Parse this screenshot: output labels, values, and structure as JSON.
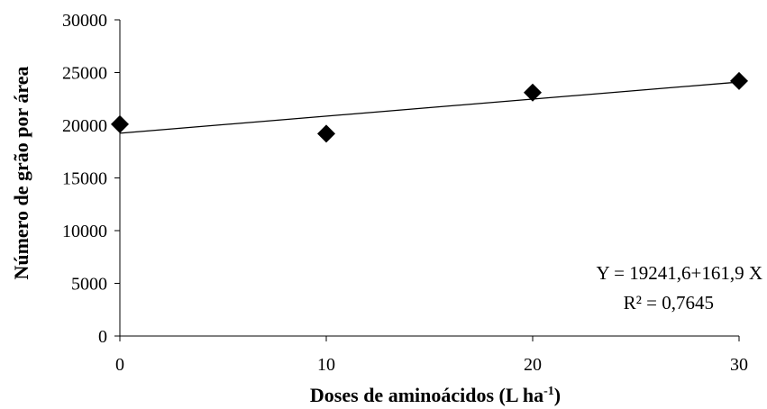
{
  "chart_data": {
    "type": "scatter",
    "x": [
      0,
      10,
      20,
      30
    ],
    "y": [
      20100,
      19200,
      23100,
      24200
    ],
    "xlabel": {
      "text": "Doses de aminoácidos (L ha",
      "superscript": "-1",
      "suffix": ")"
    },
    "ylabel": "Número de grão por área",
    "xlim": [
      0,
      30
    ],
    "ylim": [
      0,
      30000
    ],
    "xticks": [
      0,
      10,
      20,
      30
    ],
    "yticks": [
      0,
      5000,
      10000,
      15000,
      20000,
      25000,
      30000
    ],
    "grid": false,
    "legend": "none",
    "marker": "diamond",
    "marker_color": "#000000",
    "trendline": {
      "intercept": 19241.6,
      "slope": 161.9
    },
    "annotations": {
      "equation": "Y = 19241,6+161,9 X",
      "r2": "R² = 0,7645"
    }
  }
}
